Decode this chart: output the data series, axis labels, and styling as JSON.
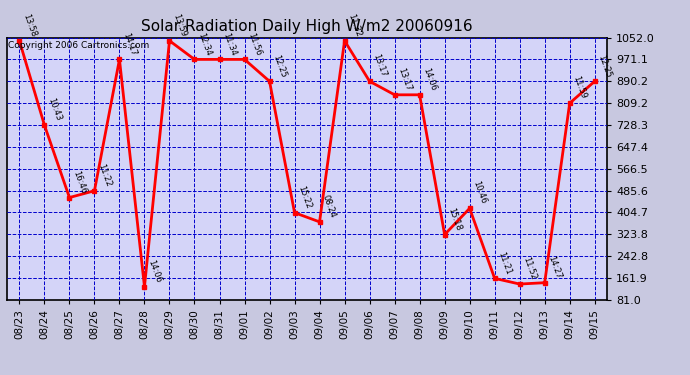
{
  "title": "Solar Radiation Daily High W/m2 20060916",
  "copyright": "Copyright 2006 Cartronics.com",
  "fig_bg_color": "#c8c8e0",
  "plot_bg_color": "#d4d4f8",
  "grid_color": "#0000cc",
  "line_color": "red",
  "ymin": 81.0,
  "ymax": 1052.0,
  "yticks": [
    81.0,
    161.9,
    242.8,
    323.8,
    404.7,
    485.6,
    566.5,
    647.4,
    728.3,
    809.2,
    890.2,
    971.1,
    1052.0
  ],
  "points": [
    {
      "date": "08/23",
      "value": 1040,
      "label": "13:58"
    },
    {
      "date": "08/24",
      "value": 728,
      "label": "10:43"
    },
    {
      "date": "08/25",
      "value": 460,
      "label": "16:46"
    },
    {
      "date": "08/26",
      "value": 485,
      "label": "11:22"
    },
    {
      "date": "08/27",
      "value": 971,
      "label": "14:17"
    },
    {
      "date": "08/28",
      "value": 130,
      "label": "14:06"
    },
    {
      "date": "08/29",
      "value": 1040,
      "label": "13:59"
    },
    {
      "date": "08/30",
      "value": 971,
      "label": "12:34"
    },
    {
      "date": "08/31",
      "value": 971,
      "label": "11:34"
    },
    {
      "date": "09/01",
      "value": 971,
      "label": "11:56"
    },
    {
      "date": "09/02",
      "value": 890,
      "label": "12:25"
    },
    {
      "date": "09/03",
      "value": 404,
      "label": "15:22"
    },
    {
      "date": "09/04",
      "value": 370,
      "label": "08:24"
    },
    {
      "date": "09/05",
      "value": 1040,
      "label": "11:32"
    },
    {
      "date": "09/06",
      "value": 890,
      "label": "13:17"
    },
    {
      "date": "09/07",
      "value": 840,
      "label": "13:17"
    },
    {
      "date": "09/08",
      "value": 840,
      "label": "14:06"
    },
    {
      "date": "09/09",
      "value": 323,
      "label": "15:18"
    },
    {
      "date": "09/10",
      "value": 420,
      "label": "10:46"
    },
    {
      "date": "09/11",
      "value": 161,
      "label": "11:21"
    },
    {
      "date": "09/12",
      "value": 140,
      "label": "11:52"
    },
    {
      "date": "09/13",
      "value": 145,
      "label": "14:27"
    },
    {
      "date": "09/14",
      "value": 809,
      "label": "11:59"
    },
    {
      "date": "09/15",
      "value": 890,
      "label": "12:25"
    }
  ]
}
